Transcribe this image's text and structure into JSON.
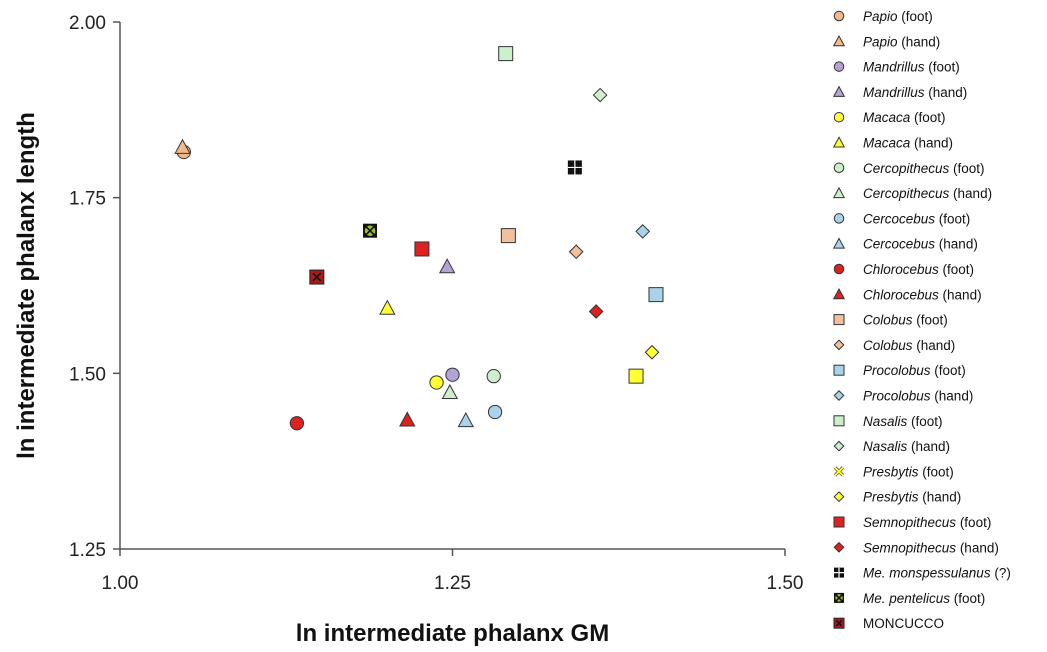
{
  "chart_data": {
    "type": "scatter",
    "title": "",
    "xlabel": "ln intermediate phalanx GM",
    "ylabel": "ln intermediate phalanx length",
    "xlim": [
      1.0,
      1.5
    ],
    "ylim": [
      1.25,
      2.0
    ],
    "xticks": [
      "1.00",
      "1.25",
      "1.50"
    ],
    "yticks": [
      "1.25",
      "1.50",
      "1.75",
      "2.00"
    ],
    "grid": false,
    "legend_position": "right",
    "series": [
      {
        "genus": "Papio",
        "suffix": " (foot)",
        "marker": "circle",
        "fill": "#f4b98a",
        "points": [
          [
            1.048,
            1.815
          ]
        ]
      },
      {
        "genus": "Papio",
        "suffix": " (hand)",
        "marker": "triangle",
        "fill": "#f4b98a",
        "points": [
          [
            1.047,
            1.822
          ]
        ]
      },
      {
        "genus": "Mandrillus",
        "suffix": " (foot)",
        "marker": "circle",
        "fill": "#b3a2d6",
        "points": [
          [
            1.25,
            1.498
          ]
        ]
      },
      {
        "genus": "Mandrillus",
        "suffix": " (hand)",
        "marker": "triangle",
        "fill": "#b3a2d6",
        "points": [
          [
            1.246,
            1.652
          ]
        ]
      },
      {
        "genus": "Macaca",
        "suffix": " (foot)",
        "marker": "circle",
        "fill": "#ffff33",
        "points": [
          [
            1.238,
            1.487
          ]
        ]
      },
      {
        "genus": "Macaca",
        "suffix": " (hand)",
        "marker": "triangle",
        "fill": "#ffff33",
        "points": [
          [
            1.201,
            1.593
          ]
        ]
      },
      {
        "genus": "Cercopithecus",
        "suffix": " (foot)",
        "marker": "circle",
        "fill": "#ccf0cc",
        "points": [
          [
            1.281,
            1.496
          ]
        ]
      },
      {
        "genus": "Cercopithecus",
        "suffix": " (hand)",
        "marker": "triangle",
        "fill": "#ccf0cc",
        "points": [
          [
            1.248,
            1.473
          ]
        ]
      },
      {
        "genus": "Cercocebus",
        "suffix": " (foot)",
        "marker": "circle",
        "fill": "#a9d3ea",
        "points": [
          [
            1.282,
            1.445
          ]
        ]
      },
      {
        "genus": "Cercocebus",
        "suffix": " (hand)",
        "marker": "triangle",
        "fill": "#a9d3ea",
        "points": [
          [
            1.26,
            1.433
          ]
        ]
      },
      {
        "genus": "Chlorocebus",
        "suffix": " (foot)",
        "marker": "circle",
        "fill": "#dd2222",
        "points": [
          [
            1.133,
            1.429
          ]
        ]
      },
      {
        "genus": "Chlorocebus",
        "suffix": " (hand)",
        "marker": "triangle",
        "fill": "#dd2222",
        "points": [
          [
            1.216,
            1.434
          ]
        ]
      },
      {
        "genus": "Colobus",
        "suffix": " (foot)",
        "marker": "square",
        "fill": "#f2c09a",
        "points": [
          [
            1.292,
            1.696
          ]
        ]
      },
      {
        "genus": "Colobus",
        "suffix": " (hand)",
        "marker": "diamond",
        "fill": "#f2c09a",
        "points": [
          [
            1.343,
            1.673
          ]
        ]
      },
      {
        "genus": "Procolobus",
        "suffix": " (foot)",
        "marker": "square",
        "fill": "#a9d3ea",
        "points": [
          [
            1.403,
            1.612
          ]
        ]
      },
      {
        "genus": "Procolobus",
        "suffix": " (hand)",
        "marker": "diamond",
        "fill": "#a9d3ea",
        "points": [
          [
            1.393,
            1.702
          ]
        ]
      },
      {
        "genus": "Nasalis",
        "suffix": " (foot)",
        "marker": "square",
        "fill": "#ccf0cc",
        "points": [
          [
            1.29,
            1.955
          ]
        ]
      },
      {
        "genus": "Nasalis",
        "suffix": " (hand)",
        "marker": "diamond",
        "fill": "#ccf0cc",
        "points": [
          [
            1.361,
            1.896
          ]
        ]
      },
      {
        "genus": "Presbytis",
        "suffix": " (foot)",
        "marker": "x",
        "fill": "#ffff33",
        "points": []
      },
      {
        "genus": "Presbytis",
        "suffix": " (hand)",
        "marker": "diamond",
        "fill": "#ffff33",
        "points": [
          [
            1.4,
            1.53
          ]
        ]
      },
      {
        "genus": "Semnopithecus",
        "suffix": " (foot)",
        "marker": "square",
        "fill": "#dd2222",
        "points": [
          [
            1.227,
            1.677
          ]
        ]
      },
      {
        "genus": "Semnopithecus",
        "suffix": " (hand)",
        "marker": "diamond",
        "fill": "#dd2222",
        "points": [
          [
            1.358,
            1.588
          ]
        ]
      },
      {
        "genus": "Me. monspessulanus",
        "suffix": " (?)",
        "marker": "pluscross",
        "fill": "#111111",
        "points": [
          [
            1.342,
            1.793
          ]
        ]
      },
      {
        "genus": "Me. pentelicus",
        "suffix": " (foot)",
        "marker": "xcircle",
        "fill": "#9bbf30",
        "points": [
          [
            1.188,
            1.703
          ]
        ]
      },
      {
        "genus": "",
        "plain": "MONCUCCO",
        "suffix": "",
        "marker": "xsquare",
        "fill": "#aa1a1a",
        "points": [
          [
            1.148,
            1.637
          ]
        ]
      }
    ],
    "extra_points": [
      {
        "note": "yellow square (unlabeled in legend)",
        "marker": "square",
        "fill": "#ffff33",
        "points": [
          [
            1.388,
            1.496
          ]
        ]
      }
    ]
  }
}
